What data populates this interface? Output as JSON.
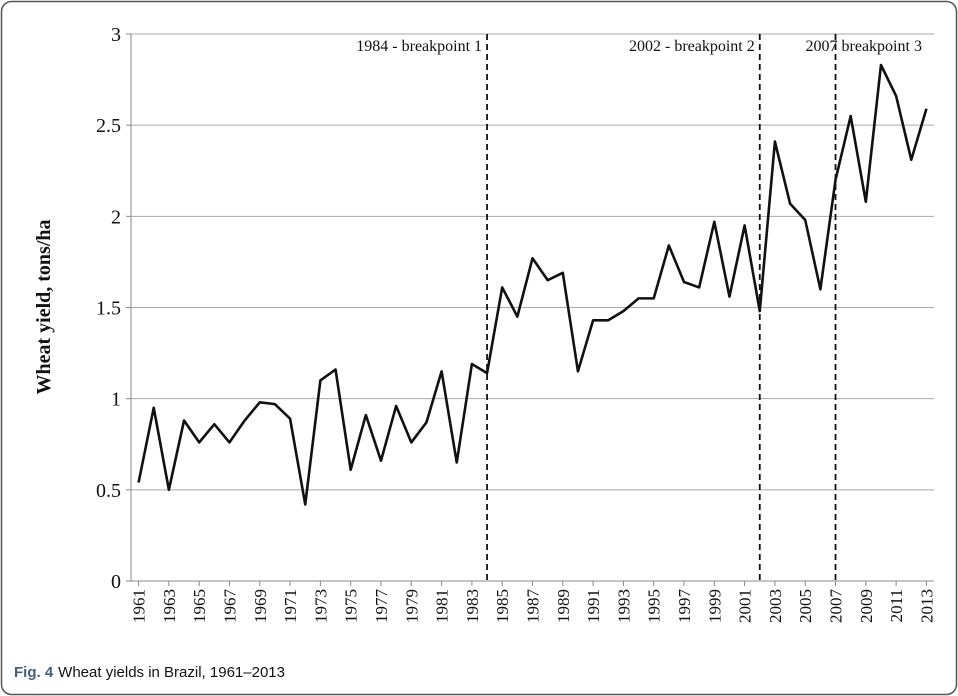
{
  "chart_data": {
    "type": "line",
    "y_label": "Wheat yield, tons/ha",
    "caption_label": "Fig. 4",
    "caption": "Wheat yields in Brazil, 1961–2013",
    "x": [
      1961,
      1962,
      1963,
      1964,
      1965,
      1966,
      1967,
      1968,
      1969,
      1970,
      1971,
      1972,
      1973,
      1974,
      1975,
      1976,
      1977,
      1978,
      1979,
      1980,
      1981,
      1982,
      1983,
      1984,
      1985,
      1986,
      1987,
      1988,
      1989,
      1990,
      1991,
      1992,
      1993,
      1994,
      1995,
      1996,
      1997,
      1998,
      1999,
      2000,
      2001,
      2002,
      2003,
      2004,
      2005,
      2006,
      2007,
      2008,
      2009,
      2010,
      2011,
      2012,
      2013
    ],
    "values": [
      0.54,
      0.95,
      0.5,
      0.88,
      0.76,
      0.86,
      0.76,
      0.88,
      0.98,
      0.97,
      0.89,
      0.42,
      1.1,
      1.16,
      0.61,
      0.91,
      0.66,
      0.96,
      0.76,
      0.87,
      1.15,
      0.65,
      1.19,
      1.14,
      1.61,
      1.45,
      1.77,
      1.65,
      1.69,
      1.15,
      1.43,
      1.43,
      1.48,
      1.55,
      1.55,
      1.84,
      1.64,
      1.61,
      1.97,
      1.56,
      1.95,
      1.48,
      2.41,
      2.07,
      1.98,
      1.6,
      2.2,
      2.55,
      2.08,
      2.83,
      2.66,
      2.31,
      2.59
    ],
    "color": "#111111",
    "xlim": [
      1960.5,
      2013.5
    ],
    "xticks": [
      1961,
      1963,
      1965,
      1967,
      1969,
      1971,
      1973,
      1975,
      1977,
      1979,
      1981,
      1983,
      1985,
      1987,
      1989,
      1991,
      1993,
      1995,
      1997,
      1999,
      2001,
      2003,
      2005,
      2007,
      2009,
      2011,
      2013
    ],
    "ylim": [
      0,
      3
    ],
    "yticks": [
      0,
      0.5,
      1,
      1.5,
      2,
      2.5,
      3
    ],
    "grid": true,
    "breakpoints": [
      {
        "x": 1984,
        "label": "1984 - breakpoint 1"
      },
      {
        "x": 2002,
        "label": "2002 - breakpoint 2"
      },
      {
        "x": 2007,
        "label": "2007  breakpoint 3"
      }
    ]
  }
}
